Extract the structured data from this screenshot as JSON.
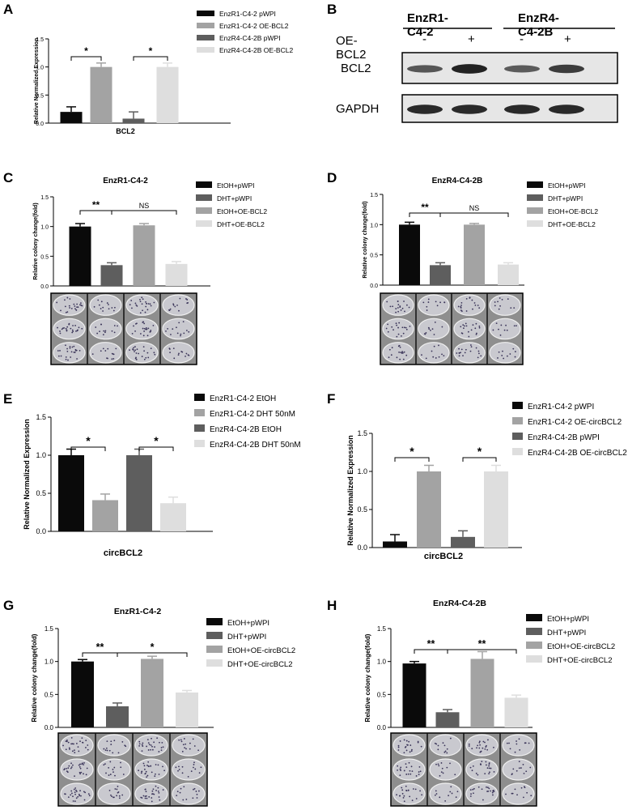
{
  "panel_labels": {
    "A": "A",
    "B": "B",
    "C": "C",
    "D": "D",
    "E": "E",
    "F": "F",
    "G": "G",
    "H": "H"
  },
  "colors": {
    "black": "#0a0a0a",
    "dark_gray": "#5e5e5e",
    "mid_gray": "#a3a3a3",
    "light_gray": "#dedede",
    "blot_bg": "#e4e4e4",
    "band": "#151515",
    "plate_bg": "#8a8a8a"
  },
  "western_blot": {
    "groups": [
      "EnzR1-C4-2",
      "EnzR4-C4-2B"
    ],
    "condition_label": "OE-BCL2",
    "signs": [
      "-",
      "+",
      "-",
      "+"
    ],
    "bands": [
      {
        "label": "BCL2",
        "intensity": [
          0.55,
          0.95,
          0.5,
          0.75
        ]
      },
      {
        "label": "GAPDH",
        "intensity": [
          0.9,
          0.9,
          0.9,
          0.9
        ]
      }
    ]
  },
  "chart_data": [
    {
      "id": "A",
      "type": "bar",
      "title": "",
      "ylabel": "Relative Normalized Expression",
      "xlabel": "BCL2",
      "ylim": [
        0,
        1.5
      ],
      "yticks": [
        "0.0",
        "0.5",
        "1.0",
        "1.5"
      ],
      "series": [
        {
          "name": "EnzR1-C4-2 pWPI",
          "value": 0.2,
          "err": 0.09,
          "color": "#0a0a0a"
        },
        {
          "name": "EnzR1-C4-2 OE-BCL2",
          "value": 1.0,
          "err": 0.07,
          "color": "#a3a3a3"
        },
        {
          "name": "EnzR4-C4-2B pWPI",
          "value": 0.08,
          "err": 0.12,
          "color": "#5e5e5e"
        },
        {
          "name": "EnzR4-C4-2B OE-BCL2",
          "value": 1.0,
          "err": 0.07,
          "color": "#dedede"
        }
      ],
      "significance": [
        {
          "from": 0,
          "to": 1,
          "text": "*"
        },
        {
          "from": 2,
          "to": 3,
          "text": "*"
        }
      ]
    },
    {
      "id": "C",
      "type": "bar",
      "title": "EnzR1-C4-2",
      "ylabel": "Relative colony change(fold)",
      "xlabel": "",
      "ylim": [
        0,
        1.5
      ],
      "yticks": [
        "0.0",
        "0.5",
        "1.0",
        "1.5"
      ],
      "series": [
        {
          "name": "EtOH+pWPI",
          "value": 1.0,
          "err": 0.05,
          "color": "#0a0a0a"
        },
        {
          "name": "DHT+pWPI",
          "value": 0.35,
          "err": 0.04,
          "color": "#5e5e5e"
        },
        {
          "name": "EtOH+OE-BCL2",
          "value": 1.02,
          "err": 0.03,
          "color": "#a3a3a3"
        },
        {
          "name": "DHT+OE-BCL2",
          "value": 0.37,
          "err": 0.04,
          "color": "#dedede"
        }
      ],
      "significance": [
        {
          "from": 0,
          "to": 1,
          "text": "**"
        },
        {
          "from": 1,
          "to": 3,
          "text": "NS"
        }
      ],
      "plates": {
        "cols": 4,
        "rows": 3,
        "density": 0.9
      }
    },
    {
      "id": "D",
      "type": "bar",
      "title": "EnzR4-C4-2B",
      "ylabel": "Relative colony change(fold)",
      "xlabel": "",
      "ylim": [
        0,
        1.5
      ],
      "yticks": [
        "0.0",
        "0.5",
        "1.0",
        "1.5"
      ],
      "series": [
        {
          "name": "EtOH+pWPI",
          "value": 1.0,
          "err": 0.04,
          "color": "#0a0a0a"
        },
        {
          "name": "DHT+pWPI",
          "value": 0.33,
          "err": 0.04,
          "color": "#5e5e5e"
        },
        {
          "name": "EtOH+OE-BCL2",
          "value": 1.0,
          "err": 0.02,
          "color": "#a3a3a3"
        },
        {
          "name": "DHT+OE-BCL2",
          "value": 0.34,
          "err": 0.03,
          "color": "#dedede"
        }
      ],
      "significance": [
        {
          "from": 0,
          "to": 1,
          "text": "**"
        },
        {
          "from": 1,
          "to": 3,
          "text": "NS"
        }
      ],
      "plates": {
        "cols": 4,
        "rows": 3,
        "density": 0.7
      }
    },
    {
      "id": "E",
      "type": "bar",
      "title": "",
      "ylabel": "Relative Normalized Expression",
      "xlabel": "circBCL2",
      "ylim": [
        0,
        1.5
      ],
      "yticks": [
        "0.0",
        "0.5",
        "1.0",
        "1.5"
      ],
      "series": [
        {
          "name": "EnzR1-C4-2 EtOH",
          "value": 1.0,
          "err": 0.08,
          "color": "#0a0a0a"
        },
        {
          "name": "EnzR1-C4-2 DHT 50nM",
          "value": 0.41,
          "err": 0.08,
          "color": "#a3a3a3"
        },
        {
          "name": "EnzR4-C4-2B EtOH",
          "value": 1.0,
          "err": 0.08,
          "color": "#5e5e5e"
        },
        {
          "name": "EnzR4-C4-2B DHT 50nM",
          "value": 0.37,
          "err": 0.08,
          "color": "#dedede"
        }
      ],
      "significance": [
        {
          "from": 0,
          "to": 1,
          "text": "*"
        },
        {
          "from": 2,
          "to": 3,
          "text": "*"
        }
      ]
    },
    {
      "id": "F",
      "type": "bar",
      "title": "",
      "ylabel": "Relative Normalized Expression",
      "xlabel": "circBCL2",
      "ylim": [
        0,
        1.5
      ],
      "yticks": [
        "0.0",
        "0.5",
        "1.0",
        "1.5"
      ],
      "series": [
        {
          "name": "EnzR1-C4-2 pWPI",
          "value": 0.08,
          "err": 0.09,
          "color": "#0a0a0a"
        },
        {
          "name": "EnzR1-C4-2 OE-circBCL2",
          "value": 1.0,
          "err": 0.08,
          "color": "#a3a3a3"
        },
        {
          "name": "EnzR4-C4-2B pWPI",
          "value": 0.14,
          "err": 0.08,
          "color": "#5e5e5e"
        },
        {
          "name": "EnzR4-C4-2B OE-circBCL2",
          "value": 1.0,
          "err": 0.08,
          "color": "#dedede"
        }
      ],
      "significance": [
        {
          "from": 0,
          "to": 1,
          "text": "*"
        },
        {
          "from": 2,
          "to": 3,
          "text": "*"
        }
      ]
    },
    {
      "id": "G",
      "type": "bar",
      "title": "EnzR1-C4-2",
      "ylabel": "Relative colony change(fold)",
      "xlabel": "",
      "ylim": [
        0,
        1.5
      ],
      "yticks": [
        "0.0",
        "0.5",
        "1.0",
        "1.5"
      ],
      "series": [
        {
          "name": "EtOH+pWPI",
          "value": 1.0,
          "err": 0.03,
          "color": "#0a0a0a"
        },
        {
          "name": "DHT+pWPI",
          "value": 0.32,
          "err": 0.05,
          "color": "#5e5e5e"
        },
        {
          "name": "EtOH+OE-circBCL2",
          "value": 1.04,
          "err": 0.04,
          "color": "#a3a3a3"
        },
        {
          "name": "DHT+OE-circBCL2",
          "value": 0.53,
          "err": 0.03,
          "color": "#dedede"
        }
      ],
      "significance": [
        {
          "from": 0,
          "to": 1,
          "text": "**"
        },
        {
          "from": 1,
          "to": 3,
          "text": "*"
        }
      ],
      "plates": {
        "cols": 4,
        "rows": 3,
        "density": 1.0
      }
    },
    {
      "id": "H",
      "type": "bar",
      "title": "EnzR4-C4-2B",
      "ylabel": "Relative colony change(fold)",
      "xlabel": "",
      "ylim": [
        0,
        1.5
      ],
      "yticks": [
        "0.0",
        "0.5",
        "1.0",
        "1.5"
      ],
      "series": [
        {
          "name": "EtOH+pWPI",
          "value": 0.97,
          "err": 0.03,
          "color": "#0a0a0a"
        },
        {
          "name": "DHT+pWPI",
          "value": 0.23,
          "err": 0.04,
          "color": "#5e5e5e"
        },
        {
          "name": "EtOH+OE-circBCL2",
          "value": 1.04,
          "err": 0.11,
          "color": "#a3a3a3"
        },
        {
          "name": "DHT+OE-circBCL2",
          "value": 0.45,
          "err": 0.04,
          "color": "#dedede"
        }
      ],
      "significance": [
        {
          "from": 0,
          "to": 1,
          "text": "**"
        },
        {
          "from": 1,
          "to": 3,
          "text": "**"
        }
      ],
      "plates": {
        "cols": 4,
        "rows": 3,
        "density": 0.8
      }
    }
  ]
}
